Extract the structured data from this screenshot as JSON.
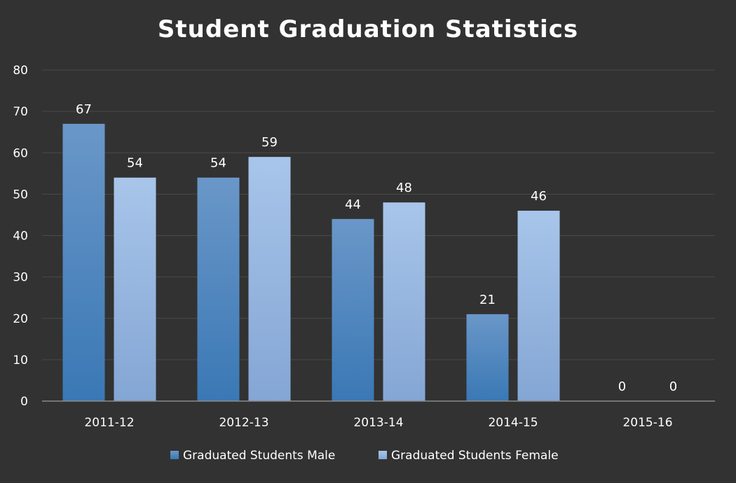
{
  "chart_data": {
    "type": "bar",
    "title": "Student Graduation Statistics",
    "xlabel": "",
    "ylabel": "",
    "categories": [
      "2011-12",
      "2012-13",
      "2013-14",
      "2014-15",
      "2015-16"
    ],
    "series": [
      {
        "name": "Graduated Students Male",
        "values": [
          67,
          54,
          44,
          21,
          0
        ],
        "color_top": "#6a97c8",
        "color_bottom": "#3a78b5"
      },
      {
        "name": "Graduated Students Female",
        "values": [
          54,
          59,
          48,
          46,
          0
        ],
        "color_top": "#a8c5ea",
        "color_bottom": "#84a6d4"
      }
    ],
    "ylim": [
      0,
      80
    ],
    "yticks": [
      0,
      10,
      20,
      30,
      40,
      50,
      60,
      70,
      80
    ],
    "grid": true,
    "legend": "bottom-center",
    "data_labels": true,
    "background": "#323232"
  }
}
